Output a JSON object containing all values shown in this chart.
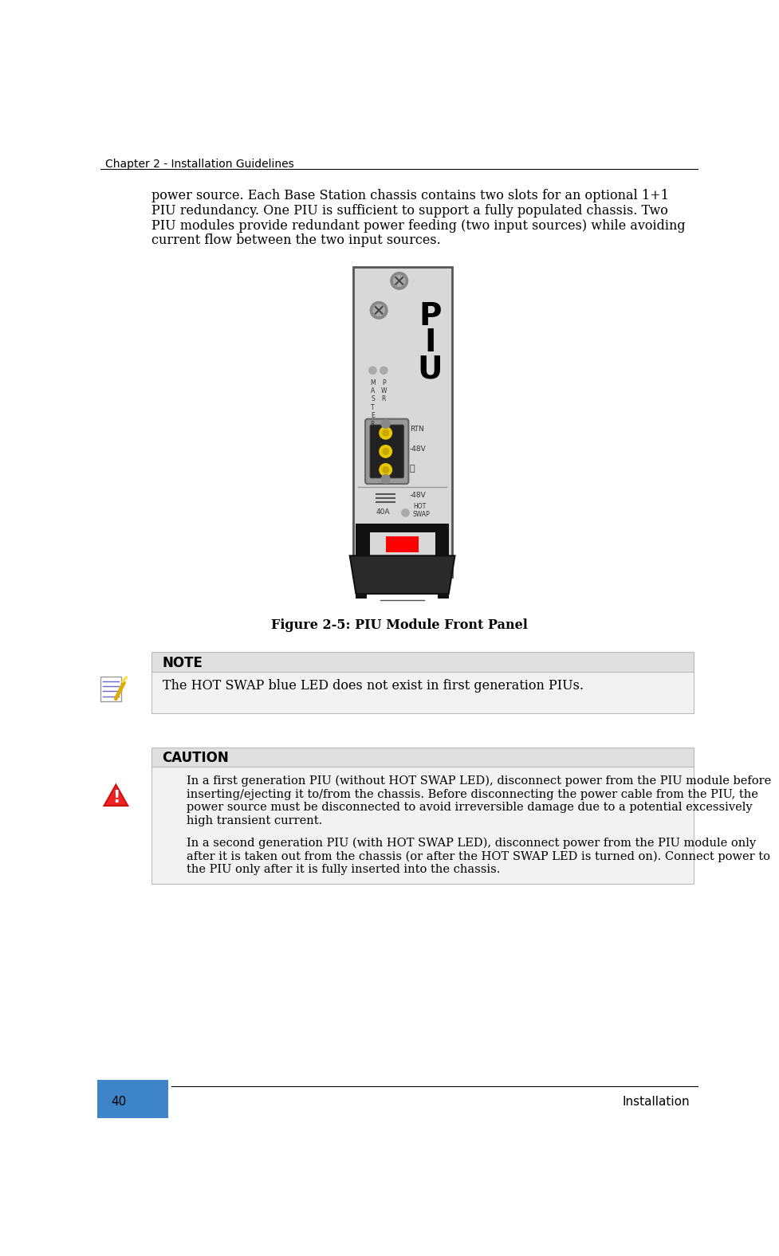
{
  "page_width": 9.77,
  "page_height": 15.76,
  "bg_color": "#ffffff",
  "header_text": "Chapter 2 - Installation Guidelines",
  "body_text_line1": "power source. Each Base Station chassis contains two slots for an optional 1+1",
  "body_text_line2": "PIU redundancy. One PIU is sufficient to support a fully populated chassis. Two",
  "body_text_line3": "PIU modules provide redundant power feeding (two input sources) while avoiding",
  "body_text_line4": "current flow between the two input sources.",
  "figure_caption": "Figure 2-5: PIU Module Front Panel",
  "note_header": "NOTE",
  "note_text": "The HOT SWAP blue LED does not exist in first generation PIUs.",
  "caution_header": "CAUTION",
  "caution_para1_line1": "In a first generation PIU (without HOT SWAP LED), disconnect power from the PIU module before",
  "caution_para1_line2": "inserting/ejecting it to/from the chassis. Before disconnecting the power cable from the PIU, the",
  "caution_para1_line3": "power source must be disconnected to avoid irreversible damage due to a potential excessively",
  "caution_para1_line4": "high transient current.",
  "caution_para2_line1": "In a second generation PIU (with HOT SWAP LED), disconnect power from the PIU module only",
  "caution_para2_line2": "after it is taken out from the chassis (or after the HOT SWAP LED is turned on). Connect power to",
  "caution_para2_line3": "the PIU only after it is fully inserted into the chassis.",
  "footer_page": "40",
  "footer_right": "Installation",
  "footer_blue_color": "#3d85c8",
  "note_bg_color": "#e0e0e0",
  "caution_bg_color": "#e0e0e0",
  "note_body_bg": "#f2f2f2",
  "caution_body_bg": "#f2f2f2",
  "body_font_size": 11.5,
  "header_font_size": 10,
  "caption_font_size": 11.5,
  "note_header_font_size": 12,
  "caution_header_font_size": 12,
  "footer_font_size": 11,
  "piu_chassis_color": "#d8d8d8",
  "piu_border_color": "#555555",
  "piu_connector_color": "#b8b800",
  "piu_connector_border": "#888800",
  "piu_dot_color": "#b8b000",
  "piu_dark_color": "#1a1a1a",
  "piu_handle_color": "#2d2d2d",
  "piu_red_color": "#ff0000",
  "piu_screw_color": "#888888",
  "piu_label_color": "#333333"
}
